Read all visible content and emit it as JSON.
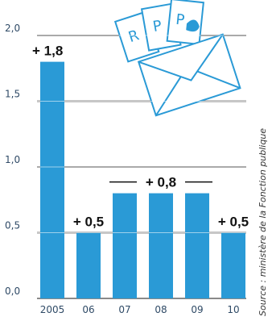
{
  "chart_data": {
    "type": "bar",
    "categories": [
      "2005",
      "06",
      "07",
      "08",
      "09",
      "10"
    ],
    "values": [
      1.8,
      0.5,
      0.8,
      0.8,
      0.8,
      0.5
    ],
    "ylim": [
      0,
      2.0
    ],
    "yticks": [
      "0,0",
      "0,5",
      "1,0",
      "1,5",
      "2,0"
    ],
    "ytick_values": [
      0,
      0.5,
      1.0,
      1.5,
      2.0
    ],
    "data_labels": [
      {
        "text": "+ 1,8",
        "for": [
          "2005"
        ]
      },
      {
        "text": "+ 0,5",
        "for": [
          "06"
        ]
      },
      {
        "text": "+ 0,8",
        "for": [
          "07",
          "08",
          "09"
        ]
      },
      {
        "text": "+ 0,5",
        "for": [
          "10"
        ]
      }
    ],
    "grid": true,
    "bar_color": "#2a9ad6",
    "grid_color": "#8a8a8a",
    "title": "",
    "xlabel": "",
    "ylabel": ""
  },
  "source": "Source : ministère de la Fonction publique",
  "illustration": {
    "icon": "envelope-with-letters-icon",
    "colors": {
      "stroke": "#2a9ad6",
      "fill": "#ffffff"
    }
  }
}
